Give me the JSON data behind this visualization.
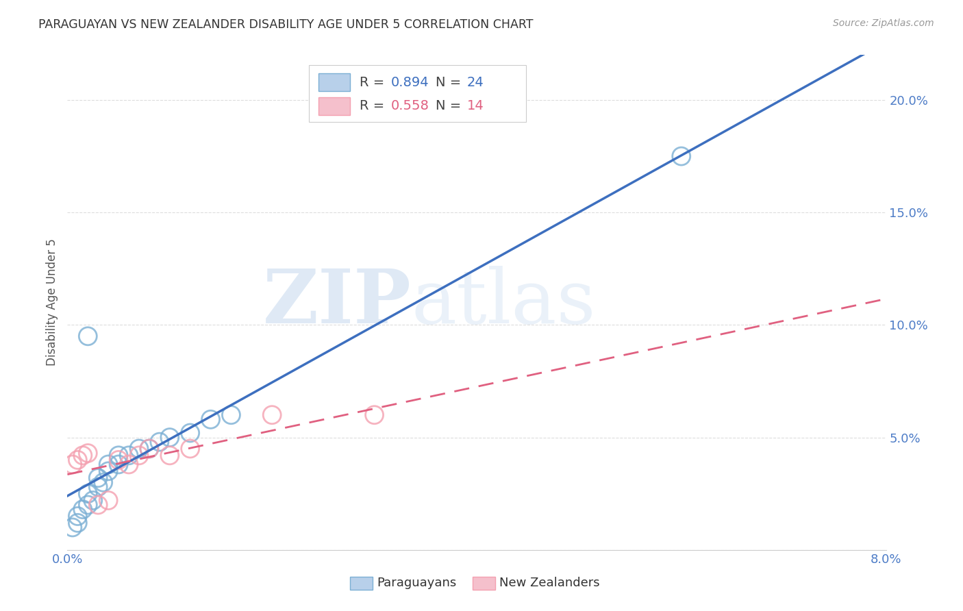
{
  "title": "PARAGUAYAN VS NEW ZEALANDER DISABILITY AGE UNDER 5 CORRELATION CHART",
  "source": "Source: ZipAtlas.com",
  "ylabel": "Disability Age Under 5",
  "legend_paraguayan": "Paraguayans",
  "legend_newzealander": "New Zealanders",
  "watermark_zip": "ZIP",
  "watermark_atlas": "atlas",
  "legend_blue_r": "R = 0.894",
  "legend_blue_n": "N = 24",
  "legend_pink_r": "R = 0.558",
  "legend_pink_n": "N = 14",
  "xlim": [
    0.0,
    0.08
  ],
  "ylim": [
    0.0,
    0.22
  ],
  "yticks": [
    0.0,
    0.05,
    0.1,
    0.15,
    0.2
  ],
  "ytick_labels": [
    "",
    "5.0%",
    "10.0%",
    "15.0%",
    "20.0%"
  ],
  "xticks": [
    0.0,
    0.02,
    0.04,
    0.06,
    0.08
  ],
  "xtick_labels": [
    "0.0%",
    "",
    "",
    "",
    "8.0%"
  ],
  "blue_scatter": "#7BAFD4",
  "pink_scatter": "#F4A0B0",
  "line_blue": "#3D6FBF",
  "line_pink": "#E06080",
  "title_color": "#333333",
  "axis_tick_color": "#4D7CC7",
  "background_color": "#FFFFFF",
  "grid_color": "#DDDDDD",
  "paraguayan_x": [
    0.0005,
    0.001,
    0.001,
    0.0015,
    0.002,
    0.002,
    0.0025,
    0.003,
    0.003,
    0.0035,
    0.004,
    0.004,
    0.005,
    0.005,
    0.006,
    0.007,
    0.008,
    0.009,
    0.01,
    0.012,
    0.014,
    0.016,
    0.06,
    0.002
  ],
  "paraguayan_y": [
    0.01,
    0.012,
    0.015,
    0.018,
    0.02,
    0.025,
    0.022,
    0.028,
    0.032,
    0.03,
    0.035,
    0.038,
    0.038,
    0.042,
    0.042,
    0.045,
    0.045,
    0.048,
    0.05,
    0.052,
    0.058,
    0.06,
    0.175,
    0.095
  ],
  "newzealander_x": [
    0.0005,
    0.001,
    0.0015,
    0.002,
    0.003,
    0.004,
    0.005,
    0.006,
    0.007,
    0.008,
    0.01,
    0.012,
    0.02,
    0.03
  ],
  "newzealander_y": [
    0.038,
    0.04,
    0.042,
    0.043,
    0.02,
    0.022,
    0.04,
    0.038,
    0.042,
    0.045,
    0.042,
    0.045,
    0.06,
    0.06
  ]
}
